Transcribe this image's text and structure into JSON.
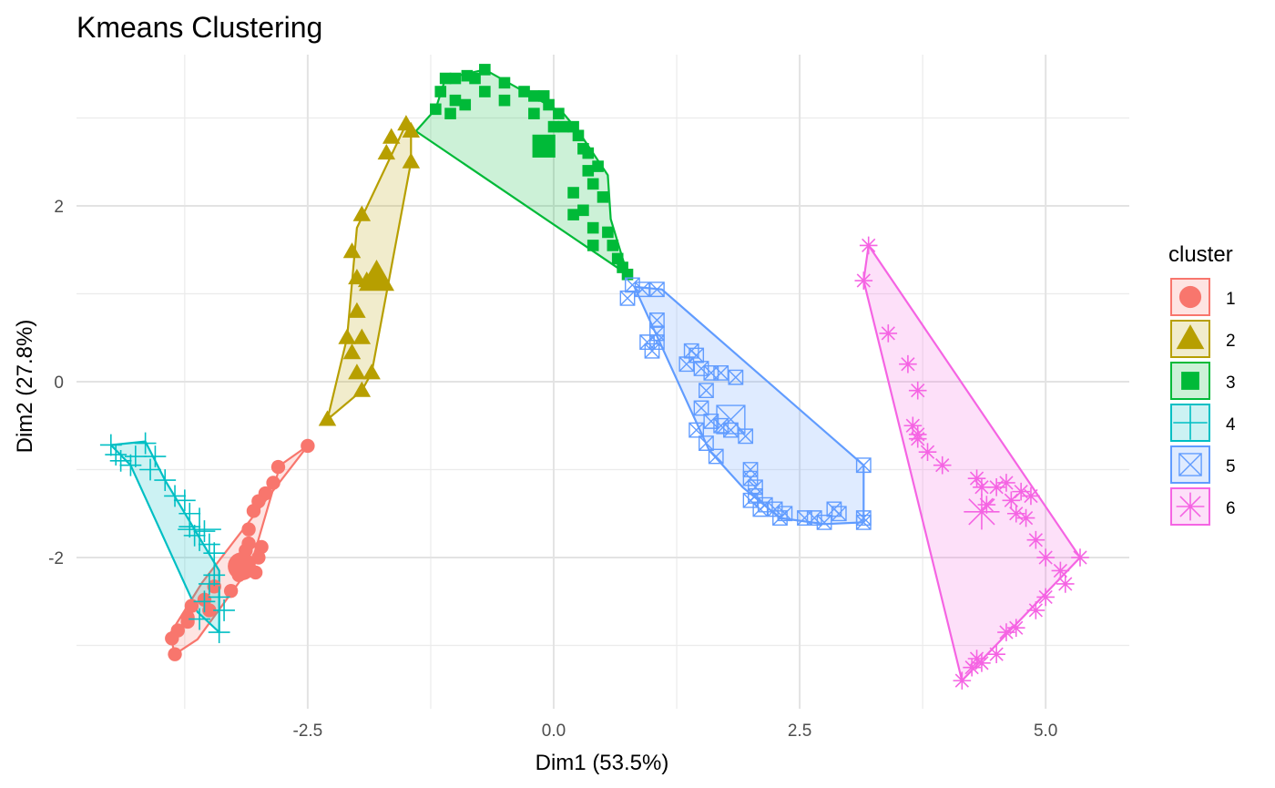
{
  "chart_data": {
    "type": "scatter",
    "title": "Kmeans Clustering",
    "xlabel": "Dim1 (53.5%)",
    "ylabel": "Dim2 (27.8%)",
    "xlim": [
      -4.85,
      5.85
    ],
    "ylim": [
      -3.72,
      3.72
    ],
    "x_ticks": [
      -2.5,
      0.0,
      2.5,
      5.0
    ],
    "x_tick_labels": [
      "-2.5",
      "0.0",
      "2.5",
      "5.0"
    ],
    "y_ticks": [
      -2,
      0,
      2
    ],
    "y_tick_labels": [
      "-2",
      "0",
      "2"
    ],
    "grid": true,
    "legend": {
      "title": "cluster",
      "position": "right"
    },
    "series": [
      {
        "name": "1",
        "color": "#F8766D",
        "marker": "circle",
        "points": [
          [
            -2.5,
            -0.73
          ],
          [
            -2.8,
            -0.97
          ],
          [
            -2.85,
            -1.15
          ],
          [
            -2.93,
            -1.27
          ],
          [
            -3.0,
            -1.36
          ],
          [
            -3.05,
            -1.47
          ],
          [
            -3.1,
            -1.68
          ],
          [
            -3.1,
            -1.84
          ],
          [
            -3.13,
            -1.92
          ],
          [
            -2.97,
            -1.88
          ],
          [
            -3.0,
            -2.0
          ],
          [
            -3.03,
            -2.17
          ],
          [
            -3.2,
            -2.2
          ],
          [
            -3.28,
            -2.38
          ],
          [
            -3.45,
            -2.33
          ],
          [
            -3.55,
            -2.48
          ],
          [
            -3.68,
            -2.55
          ],
          [
            -3.72,
            -2.68
          ],
          [
            -3.82,
            -2.83
          ],
          [
            -3.88,
            -2.92
          ],
          [
            -3.85,
            -3.1
          ],
          [
            -3.72,
            -2.73
          ],
          [
            -3.5,
            -2.6
          ]
        ],
        "center": [
          -3.17,
          -2.1
        ],
        "hull": [
          [
            -2.5,
            -0.73
          ],
          [
            -2.78,
            -0.95
          ],
          [
            -3.08,
            -2.1
          ],
          [
            -3.62,
            -2.93
          ],
          [
            -3.85,
            -3.1
          ],
          [
            -3.9,
            -2.87
          ],
          [
            -3.57,
            -2.28
          ]
        ]
      },
      {
        "name": "2",
        "color": "#B79F00",
        "marker": "triangle",
        "points": [
          [
            -2.3,
            -0.43
          ],
          [
            -1.95,
            -0.1
          ],
          [
            -2.0,
            0.1
          ],
          [
            -1.85,
            0.1
          ],
          [
            -2.05,
            0.33
          ],
          [
            -1.95,
            0.5
          ],
          [
            -2.1,
            0.5
          ],
          [
            -2.0,
            0.8
          ],
          [
            -1.9,
            1.15
          ],
          [
            -2.0,
            1.18
          ],
          [
            -2.05,
            1.48
          ],
          [
            -1.95,
            1.9
          ],
          [
            -1.7,
            2.6
          ],
          [
            -1.65,
            2.78
          ],
          [
            -1.5,
            2.93
          ],
          [
            -1.45,
            2.5
          ],
          [
            -1.45,
            2.85
          ]
        ],
        "center": [
          -1.8,
          1.18
        ],
        "hull": [
          [
            -2.3,
            -0.43
          ],
          [
            -1.95,
            -0.1
          ],
          [
            -1.85,
            0.1
          ],
          [
            -1.45,
            2.5
          ],
          [
            -1.45,
            2.85
          ],
          [
            -1.5,
            2.93
          ],
          [
            -2.0,
            1.75
          ],
          [
            -2.1,
            0.5
          ]
        ]
      },
      {
        "name": "3",
        "color": "#00BA38",
        "marker": "square",
        "points": [
          [
            -1.2,
            3.1
          ],
          [
            -1.15,
            3.3
          ],
          [
            -1.1,
            3.45
          ],
          [
            -1.0,
            3.45
          ],
          [
            -0.88,
            3.48
          ],
          [
            -0.8,
            3.45
          ],
          [
            -0.7,
            3.55
          ],
          [
            -1.0,
            3.2
          ],
          [
            -0.7,
            3.3
          ],
          [
            -0.5,
            3.4
          ],
          [
            -0.3,
            3.3
          ],
          [
            -0.2,
            3.25
          ],
          [
            -0.1,
            3.25
          ],
          [
            -0.05,
            3.15
          ],
          [
            0.05,
            3.05
          ],
          [
            0.1,
            2.9
          ],
          [
            0.2,
            2.9
          ],
          [
            0.25,
            2.8
          ],
          [
            0.3,
            2.65
          ],
          [
            0.35,
            2.6
          ],
          [
            0.35,
            2.4
          ],
          [
            0.4,
            2.25
          ],
          [
            0.45,
            2.45
          ],
          [
            0.5,
            2.1
          ],
          [
            0.55,
            1.7
          ],
          [
            0.6,
            1.55
          ],
          [
            0.65,
            1.4
          ],
          [
            0.7,
            1.3
          ],
          [
            0.75,
            1.22
          ],
          [
            0.3,
            1.95
          ],
          [
            0.4,
            1.75
          ],
          [
            0.4,
            1.55
          ],
          [
            0.2,
            1.9
          ],
          [
            0.2,
            2.15
          ],
          [
            -0.9,
            3.15
          ],
          [
            -1.05,
            3.05
          ],
          [
            -0.5,
            3.2
          ],
          [
            -0.2,
            3.05
          ],
          [
            0.0,
            2.9
          ]
        ],
        "center": [
          -0.1,
          2.68
        ],
        "hull": [
          [
            -1.4,
            2.85
          ],
          [
            -1.2,
            3.1
          ],
          [
            -1.1,
            3.45
          ],
          [
            -0.7,
            3.55
          ],
          [
            0.1,
            3.05
          ],
          [
            0.25,
            2.85
          ],
          [
            0.55,
            2.35
          ],
          [
            0.58,
            1.85
          ],
          [
            0.75,
            1.22
          ]
        ]
      },
      {
        "name": "4",
        "color": "#00BFC4",
        "marker": "plus",
        "points": [
          [
            -4.5,
            -0.72
          ],
          [
            -4.45,
            -0.83
          ],
          [
            -4.4,
            -0.9
          ],
          [
            -4.3,
            -0.95
          ],
          [
            -4.25,
            -0.85
          ],
          [
            -4.15,
            -0.7
          ],
          [
            -4.05,
            -0.85
          ],
          [
            -4.1,
            -1.0
          ],
          [
            -3.95,
            -1.12
          ],
          [
            -3.85,
            -1.3
          ],
          [
            -3.75,
            -1.35
          ],
          [
            -3.7,
            -1.5
          ],
          [
            -3.7,
            -1.65
          ],
          [
            -3.65,
            -1.75
          ],
          [
            -3.55,
            -1.7
          ],
          [
            -3.5,
            -1.85
          ],
          [
            -3.45,
            -1.95
          ],
          [
            -3.45,
            -2.2
          ],
          [
            -3.5,
            -2.3
          ],
          [
            -3.55,
            -2.5
          ],
          [
            -3.6,
            -2.7
          ],
          [
            -3.4,
            -2.85
          ],
          [
            -3.35,
            -2.6
          ],
          [
            -3.4,
            -2.45
          ]
        ],
        "center": [
          -3.6,
          -1.68
        ],
        "hull": [
          [
            -4.5,
            -0.72
          ],
          [
            -4.15,
            -0.68
          ],
          [
            -3.95,
            -1.12
          ],
          [
            -3.4,
            -2.15
          ],
          [
            -3.4,
            -2.85
          ],
          [
            -3.62,
            -2.62
          ],
          [
            -4.3,
            -0.95
          ]
        ]
      },
      {
        "name": "5",
        "color": "#619CFF",
        "marker": "square-x",
        "points": [
          [
            0.8,
            1.1
          ],
          [
            0.9,
            1.05
          ],
          [
            1.05,
            1.05
          ],
          [
            1.05,
            0.7
          ],
          [
            1.05,
            0.55
          ],
          [
            1.05,
            0.45
          ],
          [
            1.0,
            0.35
          ],
          [
            0.95,
            0.45
          ],
          [
            1.35,
            0.2
          ],
          [
            1.4,
            0.35
          ],
          [
            1.45,
            0.3
          ],
          [
            1.5,
            0.15
          ],
          [
            1.6,
            0.1
          ],
          [
            1.7,
            0.1
          ],
          [
            1.85,
            0.05
          ],
          [
            1.55,
            -0.1
          ],
          [
            1.5,
            -0.3
          ],
          [
            1.6,
            -0.45
          ],
          [
            1.45,
            -0.55
          ],
          [
            1.55,
            -0.7
          ],
          [
            1.7,
            -0.5
          ],
          [
            1.65,
            -0.85
          ],
          [
            1.8,
            -0.55
          ],
          [
            1.95,
            -0.62
          ],
          [
            2.0,
            -1.0
          ],
          [
            2.05,
            -1.2
          ],
          [
            2.05,
            -1.3
          ],
          [
            2.0,
            -1.35
          ],
          [
            2.1,
            -1.45
          ],
          [
            2.25,
            -1.45
          ],
          [
            2.3,
            -1.55
          ],
          [
            2.35,
            -1.5
          ],
          [
            2.55,
            -1.55
          ],
          [
            2.65,
            -1.55
          ],
          [
            2.75,
            -1.6
          ],
          [
            2.85,
            -1.45
          ],
          [
            2.9,
            -1.5
          ],
          [
            3.15,
            -0.95
          ],
          [
            3.15,
            -1.55
          ],
          [
            3.15,
            -1.6
          ],
          [
            0.75,
            0.95
          ],
          [
            2.0,
            -1.1
          ],
          [
            2.15,
            -1.4
          ]
        ],
        "center": [
          1.8,
          -0.43
        ],
        "hull": [
          [
            0.82,
            1.08
          ],
          [
            1.1,
            1.05
          ],
          [
            3.15,
            -0.95
          ],
          [
            3.15,
            -1.6
          ],
          [
            2.75,
            -1.62
          ],
          [
            2.3,
            -1.55
          ],
          [
            1.92,
            -1.2
          ],
          [
            1.58,
            -0.78
          ]
        ]
      },
      {
        "name": "6",
        "color": "#F564E3",
        "marker": "star",
        "points": [
          [
            3.2,
            1.55
          ],
          [
            3.15,
            1.15
          ],
          [
            3.4,
            0.55
          ],
          [
            3.6,
            0.2
          ],
          [
            3.7,
            -0.1
          ],
          [
            3.65,
            -0.5
          ],
          [
            3.7,
            -0.6
          ],
          [
            3.7,
            -0.65
          ],
          [
            3.8,
            -0.8
          ],
          [
            3.95,
            -0.95
          ],
          [
            4.3,
            -1.1
          ],
          [
            4.35,
            -1.2
          ],
          [
            4.4,
            -1.4
          ],
          [
            4.5,
            -1.2
          ],
          [
            4.6,
            -1.15
          ],
          [
            4.65,
            -1.35
          ],
          [
            4.7,
            -1.5
          ],
          [
            4.75,
            -1.25
          ],
          [
            4.8,
            -1.55
          ],
          [
            4.85,
            -1.3
          ],
          [
            4.9,
            -1.8
          ],
          [
            5.0,
            -2.0
          ],
          [
            5.15,
            -2.15
          ],
          [
            5.2,
            -2.3
          ],
          [
            5.0,
            -2.45
          ],
          [
            4.9,
            -2.6
          ],
          [
            4.7,
            -2.8
          ],
          [
            4.6,
            -2.85
          ],
          [
            4.5,
            -3.1
          ],
          [
            4.35,
            -3.2
          ],
          [
            4.25,
            -3.25
          ],
          [
            5.35,
            -2.0
          ],
          [
            4.15,
            -3.4
          ],
          [
            4.3,
            -3.15
          ]
        ],
        "center": [
          4.35,
          -1.48
        ],
        "hull": [
          [
            3.15,
            1.15
          ],
          [
            3.2,
            1.55
          ],
          [
            5.35,
            -2.0
          ],
          [
            4.15,
            -3.4
          ]
        ]
      }
    ]
  }
}
